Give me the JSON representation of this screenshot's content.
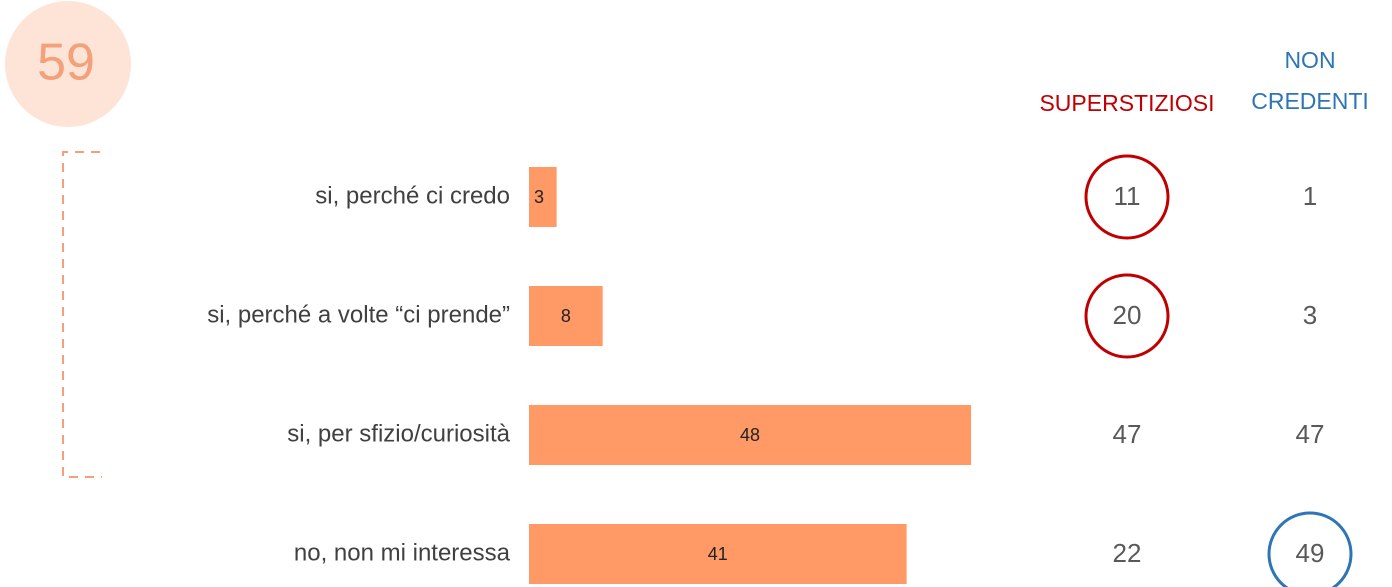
{
  "chart_data": {
    "type": "bar",
    "total": 59,
    "categories": [
      "si, perché ci credo",
      "si, perché a volte “ci prende”",
      "si, per sfizio/curiosità",
      "no, non mi interessa"
    ],
    "values": [
      3,
      8,
      48,
      41
    ],
    "color": "#ff9966",
    "columns": [
      {
        "name": "SUPERSTIZIOSI",
        "color": "#c00000",
        "values": [
          11,
          20,
          47,
          22
        ],
        "highlighted": [
          true,
          true,
          false,
          false
        ]
      },
      {
        "name": "NON CREDENTI",
        "color": "#2e75b6",
        "values": [
          1,
          3,
          47,
          49
        ],
        "highlighted": [
          false,
          false,
          false,
          true
        ]
      }
    ]
  }
}
